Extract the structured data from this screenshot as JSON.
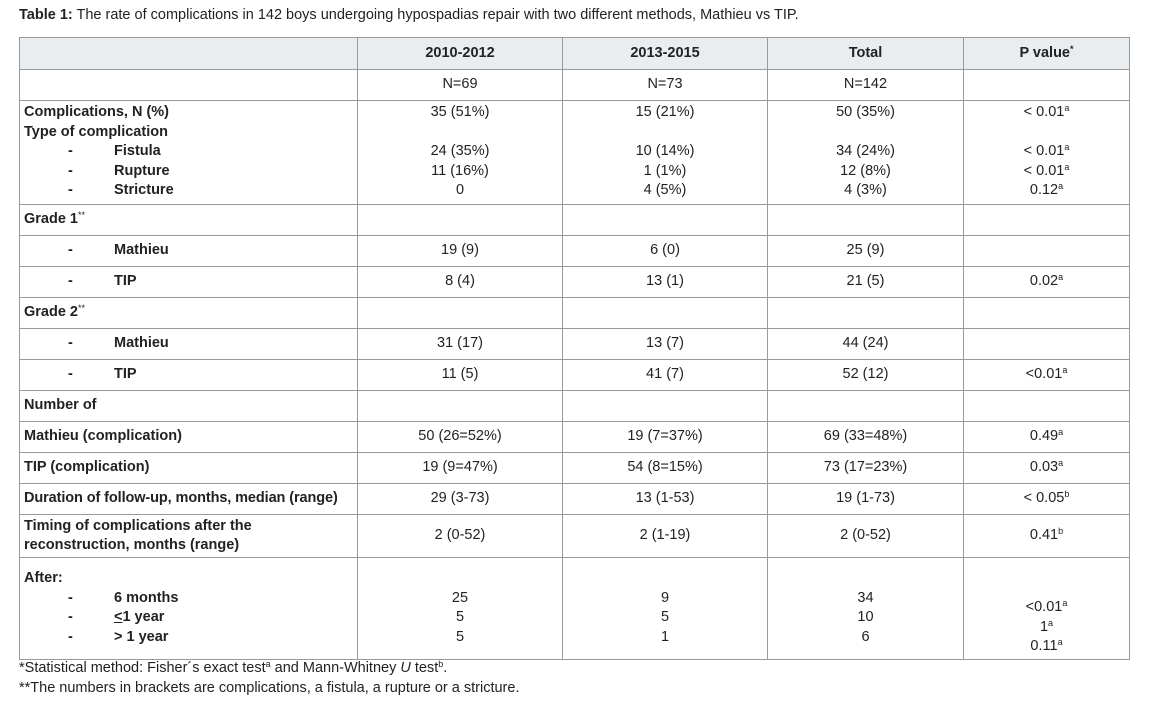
{
  "caption": {
    "label": "Table 1:",
    "text": " The rate of complications in 142 boys undergoing hypospadias repair with two different methods, Mathieu vs TIP."
  },
  "header": {
    "col0": "",
    "col1": "2010-2012",
    "col2": "2013-2015",
    "col3": "Total",
    "col4": "P value",
    "col4_sup": "*"
  },
  "n_row": {
    "c1": "N=69",
    "c2": "N=73",
    "c3": "N=142"
  },
  "complications": {
    "label": "Complications, N (%)",
    "type_label": "Type of complication",
    "c1": "35 (51%)",
    "c2": "15 (21%)",
    "c3": "50 (35%)",
    "p": "< 0.01",
    "p_sup": "a",
    "items": [
      {
        "dash": "-",
        "name": "Fistula",
        "c1": "24 (35%)",
        "c2": "10 (14%)",
        "c3": "34 (24%)",
        "p": "< 0.01",
        "p_sup": "a"
      },
      {
        "dash": "-",
        "name": "Rupture",
        "c1": "11 (16%)",
        "c2": "1 (1%)",
        "c3": "12 (8%)",
        "p": "< 0.01",
        "p_sup": "a"
      },
      {
        "dash": "-",
        "name": "Stricture",
        "c1": "0",
        "c2": "4 (5%)",
        "c3": "4 (3%)",
        "p": "0.12",
        "p_sup": "a"
      }
    ]
  },
  "grade1": {
    "label": "Grade 1",
    "sup": "**",
    "rows": [
      {
        "dash": "-",
        "name": "Mathieu",
        "c1": "19 (9)",
        "c2": "6 (0)",
        "c3": "25 (9)",
        "p": "",
        "p_sup": ""
      },
      {
        "dash": "-",
        "name": "TIP",
        "c1": "8 (4)",
        "c2": "13 (1)",
        "c3": "21 (5)",
        "p": "0.02",
        "p_sup": "a"
      }
    ]
  },
  "grade2": {
    "label": "Grade 2",
    "sup": "**",
    "rows": [
      {
        "dash": "-",
        "name": "Mathieu",
        "c1": "31 (17)",
        "c2": "13 (7)",
        "c3": "44 (24)",
        "p": "",
        "p_sup": ""
      },
      {
        "dash": "-",
        "name": "TIP",
        "c1": "11 (5)",
        "c2": "41 (7)",
        "c3": "52 (12)",
        "p": "<0.01",
        "p_sup": "a"
      }
    ]
  },
  "number_of": {
    "label": "Number of"
  },
  "mathieu_comp": {
    "label": "Mathieu (complication)",
    "c1": "50 (26=52%)",
    "c2": "19 (7=37%)",
    "c3": "69 (33=48%)",
    "p": "0.49",
    "p_sup": "a"
  },
  "tip_comp": {
    "label": "TIP (complication)",
    "c1": "19 (9=47%)",
    "c2": "54 (8=15%)",
    "c3": "73 (17=23%)",
    "p": "0.03",
    "p_sup": "a"
  },
  "followup": {
    "label": "Duration of follow-up, months, median (range)",
    "c1": "29 (3-73)",
    "c2": "13 (1-53)",
    "c3": "19 (1-73)",
    "p": "< 0.05",
    "p_sup": "b"
  },
  "timing": {
    "label_line1": "Timing of complications after the",
    "label_line2": "reconstruction, months (range)",
    "c1": "2 (0-52)",
    "c2": "2 (1-19)",
    "c3": "2 (0-52)",
    "p": "0.41",
    "p_sup": "b"
  },
  "after": {
    "label": "After:",
    "rows": [
      {
        "dash": "-",
        "name_prefix": "",
        "name_u": "",
        "name": "6 months",
        "c1": "25",
        "c2": "9",
        "c3": "34"
      },
      {
        "dash": "-",
        "name_prefix": "",
        "name_u": "<",
        "name": "1 year",
        "c1": "5",
        "c2": "5",
        "c3": "10"
      },
      {
        "dash": "-",
        "name_prefix": "> ",
        "name_u": "",
        "name": "1 year",
        "c1": "5",
        "c2": "1",
        "c3": "6"
      }
    ],
    "p_values": [
      {
        "p": "<0.01",
        "p_sup": "a"
      },
      {
        "p": "1",
        "p_sup": "a"
      },
      {
        "p": "0.11",
        "p_sup": "a"
      }
    ]
  },
  "footnotes": {
    "f1_a": "*Statistical method: Fisher´s exact test",
    "f1_sup_a": "a",
    "f1_b": " and Mann-Whitney ",
    "f1_u": "U",
    "f1_c": " test",
    "f1_sup_b": "b",
    "f1_d": ".",
    "f2": "**The numbers in brackets are complications, a fistula, a rupture or a stricture."
  }
}
